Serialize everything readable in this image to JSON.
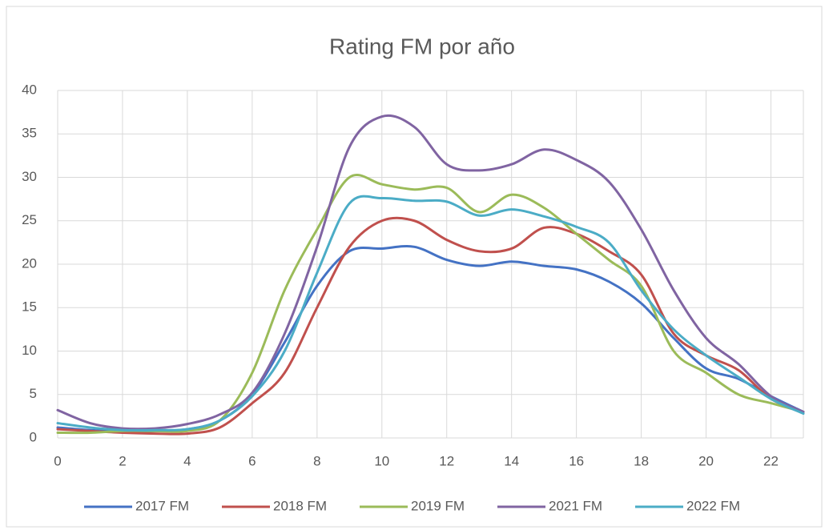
{
  "chart_data": {
    "type": "line",
    "title": "Rating FM por año",
    "x": [
      0,
      1,
      2,
      3,
      4,
      5,
      6,
      7,
      8,
      9,
      10,
      11,
      12,
      13,
      14,
      15,
      16,
      17,
      18,
      19,
      20,
      21,
      22,
      23
    ],
    "xlim": [
      0,
      23
    ],
    "xticks": [
      0,
      2,
      4,
      6,
      8,
      10,
      12,
      14,
      16,
      18,
      20,
      22
    ],
    "ylim": [
      0,
      40
    ],
    "yticks": [
      0,
      5,
      10,
      15,
      20,
      25,
      30,
      35,
      40
    ],
    "grid": true,
    "smooth": true,
    "legend": "bottom",
    "series": [
      {
        "name": "2017 FM",
        "color": "#4472c4",
        "values": [
          1.2,
          0.9,
          0.8,
          0.8,
          1.0,
          2.0,
          5.0,
          11,
          17.5,
          21.5,
          21.8,
          22,
          20.5,
          19.8,
          20.3,
          19.8,
          19.4,
          18,
          15.5,
          11.5,
          8,
          6.8,
          4.8,
          3
        ]
      },
      {
        "name": "2018 FM",
        "color": "#c0504d",
        "values": [
          1.0,
          0.8,
          0.6,
          0.5,
          0.5,
          1.2,
          4,
          7.5,
          15,
          22,
          25,
          25,
          22.8,
          21.5,
          21.8,
          24.2,
          23.5,
          21.5,
          18.8,
          12,
          9.5,
          7.8,
          4.5,
          3
        ]
      },
      {
        "name": "2019 FM",
        "color": "#9bbb59",
        "values": [
          0.6,
          0.6,
          0.8,
          0.8,
          0.8,
          2,
          7.5,
          17,
          24,
          30,
          29.2,
          28.6,
          28.8,
          26,
          28,
          26.5,
          23.5,
          20.5,
          17.5,
          10,
          7.5,
          5,
          4,
          3
        ]
      },
      {
        "name": "2021 FM",
        "color": "#8064a2",
        "values": [
          3.2,
          1.7,
          1.1,
          1.1,
          1.6,
          2.7,
          5.2,
          12,
          22,
          33.5,
          37,
          35.8,
          31.5,
          30.8,
          31.5,
          33.2,
          32,
          29.5,
          24,
          17,
          11.5,
          8.5,
          4.8,
          3
        ]
      },
      {
        "name": "2022 FM",
        "color": "#4bacc6",
        "values": [
          1.7,
          1.2,
          0.9,
          0.9,
          1.0,
          2.0,
          4.8,
          10,
          19,
          27,
          27.6,
          27.3,
          27.2,
          25.6,
          26.3,
          25.5,
          24.3,
          22.5,
          17,
          12.5,
          9.5,
          7,
          4.5,
          2.8
        ]
      }
    ]
  }
}
